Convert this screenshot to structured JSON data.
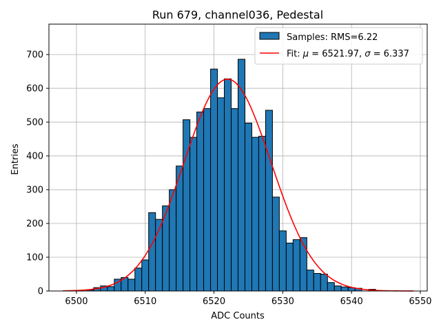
{
  "chart_data": {
    "type": "bar",
    "title": "Run 679, channel036, Pedestal",
    "xlabel": "ADC Counts",
    "ylabel": "Entries",
    "xlim": [
      6496,
      6551
    ],
    "ylim": [
      0,
      790
    ],
    "xticks": [
      6500,
      6510,
      6520,
      6530,
      6540,
      6550
    ],
    "yticks": [
      0,
      100,
      200,
      300,
      400,
      500,
      600,
      700
    ],
    "grid": true,
    "legend_position": "top-right",
    "bin_width": 1,
    "histogram": {
      "name": "Samples: RMS=6.22",
      "color": "#1f77b4",
      "bins": [
        [
          6502,
          3
        ],
        [
          6503,
          10
        ],
        [
          6504,
          15
        ],
        [
          6505,
          13
        ],
        [
          6506,
          35
        ],
        [
          6507,
          40
        ],
        [
          6508,
          35
        ],
        [
          6509,
          68
        ],
        [
          6510,
          92
        ],
        [
          6511,
          232
        ],
        [
          6512,
          212
        ],
        [
          6513,
          252
        ],
        [
          6514,
          300
        ],
        [
          6515,
          370
        ],
        [
          6516,
          507
        ],
        [
          6517,
          455
        ],
        [
          6518,
          530
        ],
        [
          6519,
          540
        ],
        [
          6520,
          657
        ],
        [
          6521,
          572
        ],
        [
          6522,
          628
        ],
        [
          6523,
          540
        ],
        [
          6524,
          686
        ],
        [
          6525,
          497
        ],
        [
          6526,
          455
        ],
        [
          6527,
          458
        ],
        [
          6528,
          535
        ],
        [
          6529,
          278
        ],
        [
          6530,
          178
        ],
        [
          6531,
          142
        ],
        [
          6532,
          152
        ],
        [
          6533,
          158
        ],
        [
          6534,
          62
        ],
        [
          6535,
          52
        ],
        [
          6536,
          50
        ],
        [
          6537,
          25
        ],
        [
          6538,
          15
        ],
        [
          6539,
          12
        ],
        [
          6540,
          10
        ],
        [
          6541,
          8
        ],
        [
          6543,
          5
        ]
      ]
    },
    "fit": {
      "name_prefix": "Fit: ",
      "mu_symbol": "μ",
      "mu_text": " = 6521.97, ",
      "sigma_symbol": "σ",
      "sigma_text": " = 6.337",
      "mu": 6521.97,
      "sigma": 6.337,
      "amplitude": 627,
      "range": [
        6498,
        6549
      ],
      "color": "#ff0000"
    }
  }
}
